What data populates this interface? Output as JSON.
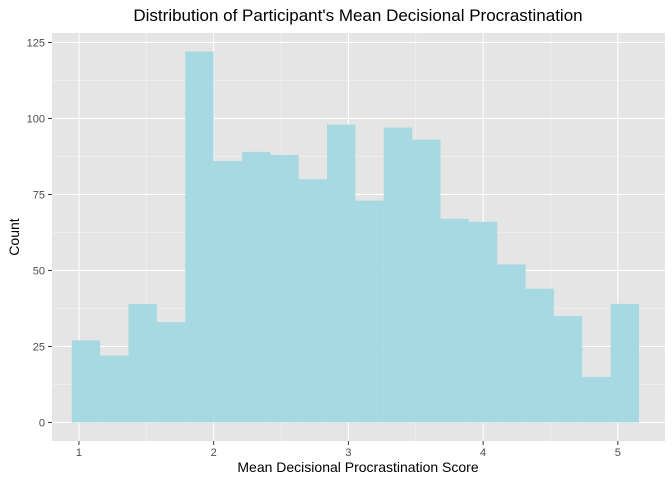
{
  "chart_data": {
    "type": "bar",
    "title": "Distribution of Participant's Mean Decisional Procrastination",
    "xlabel": "Mean Decisional Procrastination Score",
    "ylabel": "Count",
    "xlim": [
      0.8,
      5.35
    ],
    "ylim": [
      -6.1,
      128.1
    ],
    "x_ticks": [
      1,
      2,
      3,
      4,
      5
    ],
    "y_ticks": [
      0,
      25,
      50,
      75,
      100,
      125
    ],
    "bin_width": 0.2105,
    "bin_start": 0.947,
    "counts": [
      27,
      22,
      39,
      33,
      122,
      86,
      89,
      88,
      80,
      98,
      73,
      97,
      93,
      67,
      66,
      52,
      44,
      35,
      15,
      39
    ],
    "grid": true,
    "legend": "none",
    "colors": {
      "bar_fill": "#a6d9e1",
      "panel_background": "#e5e5e5",
      "grid_major": "#ffffff",
      "grid_minor": "#f2f2f2"
    }
  }
}
